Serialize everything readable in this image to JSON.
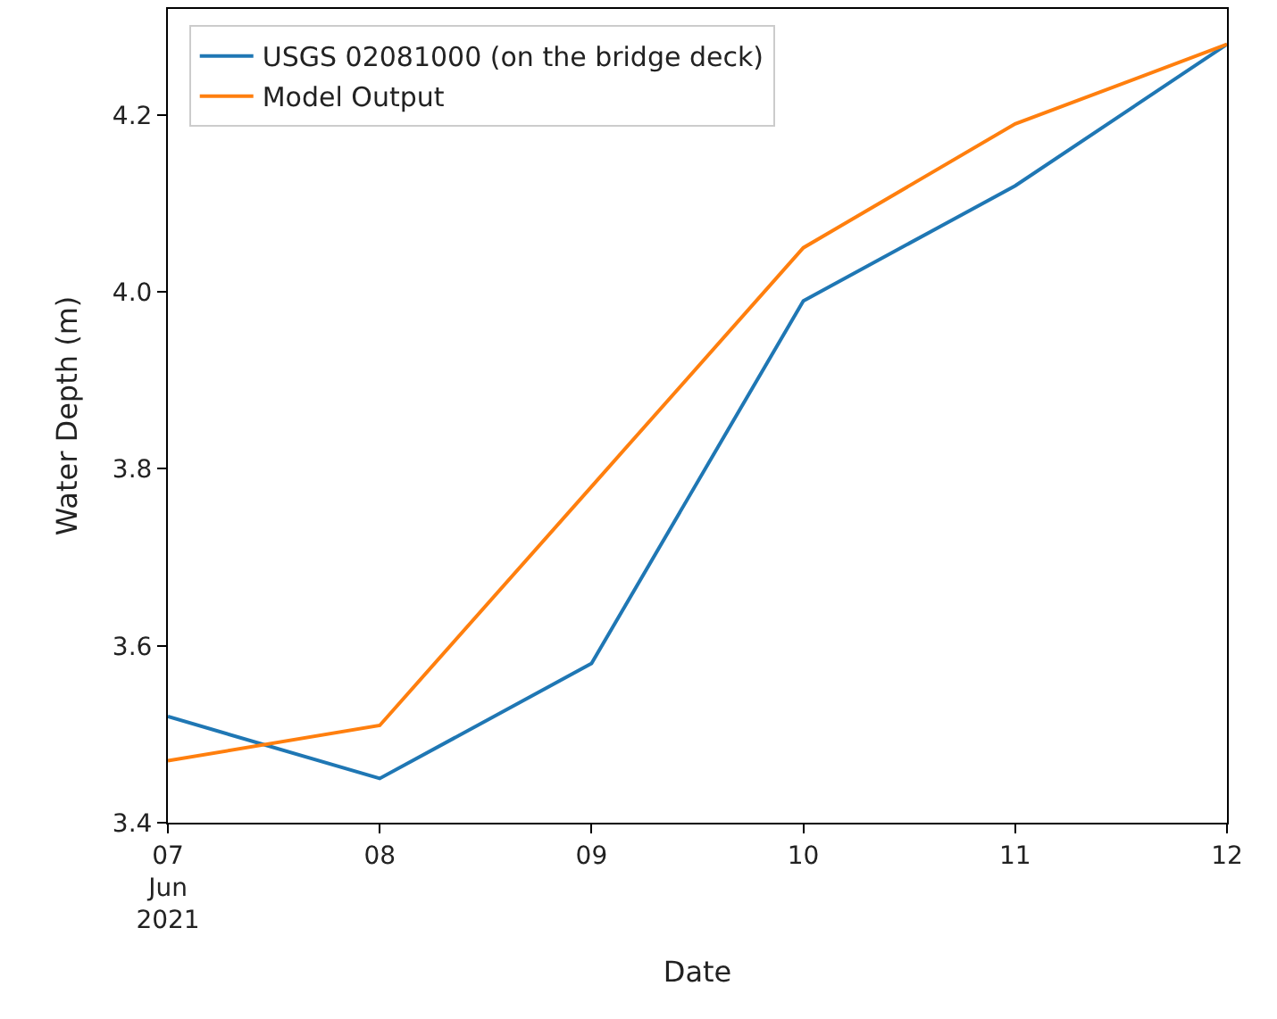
{
  "chart_data": {
    "type": "line",
    "xlabel": "Date",
    "ylabel": "Water Depth (m)",
    "x": [
      "2021-06-07",
      "2021-06-08",
      "2021-06-09",
      "2021-06-10",
      "2021-06-11",
      "2021-06-12"
    ],
    "series": [
      {
        "name": "USGS 02081000 (on the bridge deck)",
        "color": "#1f77b4",
        "values": [
          3.52,
          3.45,
          3.58,
          3.99,
          4.12,
          4.28
        ]
      },
      {
        "name": "Model Output",
        "color": "#ff7f0e",
        "values": [
          3.47,
          3.51,
          3.78,
          4.05,
          4.19,
          4.28
        ]
      }
    ],
    "xlim": [
      "2021-06-07",
      "2021-06-12"
    ],
    "xticks": [
      {
        "value": "2021-06-07",
        "label": "07\nJun\n2021"
      },
      {
        "value": "2021-06-08",
        "label": "08"
      },
      {
        "value": "2021-06-09",
        "label": "09"
      },
      {
        "value": "2021-06-10",
        "label": "10"
      },
      {
        "value": "2021-06-11",
        "label": "11"
      },
      {
        "value": "2021-06-12",
        "label": "12"
      }
    ],
    "ylim": [
      3.4,
      4.32
    ],
    "yticks": [
      {
        "value": 3.4,
        "label": "3.4"
      },
      {
        "value": 3.6,
        "label": "3.6"
      },
      {
        "value": 3.8,
        "label": "3.8"
      },
      {
        "value": 4.0,
        "label": "4.0"
      },
      {
        "value": 4.2,
        "label": "4.2"
      }
    ],
    "legend": "top left",
    "marker": "none",
    "line_style": "solid"
  }
}
